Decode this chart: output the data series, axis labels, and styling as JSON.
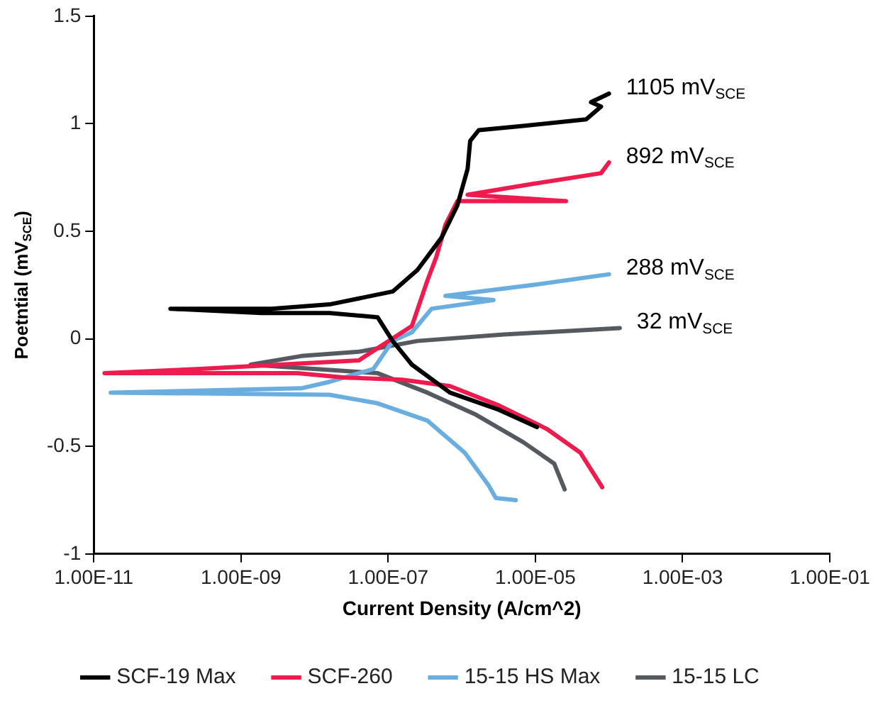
{
  "chart_data": {
    "type": "line",
    "xlabel": "Current Density (A/cm^2)",
    "ylabel": "Poetntial (mV$_{SCE}$)",
    "log": "x",
    "xlim": [
      1e-11,
      0.1
    ],
    "xticks": [
      {
        "value": 1e-11,
        "label": "1.00E-11"
      },
      {
        "value": 1e-09,
        "label": "1.00E-09"
      },
      {
        "value": 1e-07,
        "label": "1.00E-07"
      },
      {
        "value": 1e-05,
        "label": "1.00E-05"
      },
      {
        "value": 0.001,
        "label": "1.00E-03"
      },
      {
        "value": 0.1,
        "label": "1.00E-01"
      }
    ],
    "ylim": [
      -1,
      1.5
    ],
    "yticks": [
      -1,
      -0.5,
      0,
      0.5,
      1,
      1.5
    ],
    "grid": false,
    "legend": "bottom",
    "marker": "none",
    "line_style": "solid",
    "series": [
      {
        "name": "SCF-19 Max",
        "color": "#000000",
        "x": [
          1.05e-05,
          3.2e-06,
          6.9e-07,
          2.1e-07,
          1.15e-07,
          7.2e-08,
          1.6e-08,
          1.9e-09,
          1.1e-10,
          2.6e-09,
          1.6e-08,
          1.15e-07,
          2.5e-07,
          5.3e-07,
          8.7e-07,
          1.2e-06,
          1.3e-06,
          1.7e-06,
          6.8e-06,
          4.9e-05,
          7.8e-05,
          5.7e-05,
          0.0001
        ],
        "values": [
          -0.41,
          -0.33,
          -0.25,
          -0.12,
          -0.01,
          0.1,
          0.12,
          0.12,
          0.14,
          0.14,
          0.16,
          0.22,
          0.32,
          0.47,
          0.62,
          0.79,
          0.92,
          0.97,
          0.99,
          1.02,
          1.08,
          1.1,
          1.14
        ]
      },
      {
        "name": "SCF-260",
        "color": "#ee1c4e",
        "x": [
          8.1e-05,
          4.1e-05,
          1.45e-05,
          3.2e-06,
          6.9e-07,
          1.55e-07,
          2.6e-08,
          5.8e-09,
          1.4e-11,
          2.8e-10,
          4e-08,
          2.1e-07,
          3.4e-07,
          4.5e-07,
          6e-07,
          8.7e-07,
          2.6e-05,
          1.2e-06,
          9.1e-06,
          7.8e-05,
          0.0001
        ],
        "values": [
          -0.69,
          -0.53,
          -0.42,
          -0.31,
          -0.22,
          -0.19,
          -0.18,
          -0.16,
          -0.16,
          -0.14,
          -0.1,
          0.06,
          0.27,
          0.38,
          0.53,
          0.64,
          0.64,
          0.67,
          0.72,
          0.77,
          0.82
        ]
      },
      {
        "name": "15-15 HS Max",
        "color": "#6aaee0",
        "x": [
          5.4e-06,
          2.9e-06,
          2.3e-06,
          1.1e-06,
          3.4e-07,
          7.2e-08,
          1.6e-08,
          1.7e-11,
          6.6e-09,
          1.6e-08,
          6.3e-08,
          1.15e-07,
          2.1e-07,
          3.9e-07,
          2.7e-06,
          6e-07,
          9.1e-06,
          0.0001
        ],
        "values": [
          -0.75,
          -0.74,
          -0.68,
          -0.53,
          -0.38,
          -0.3,
          -0.26,
          -0.25,
          -0.23,
          -0.2,
          -0.14,
          -0.01,
          0.03,
          0.14,
          0.18,
          0.2,
          0.25,
          0.3
        ]
      },
      {
        "name": "15-15 LC",
        "color": "#555a60",
        "x": [
          2.5e-05,
          1.8e-05,
          6.8e-06,
          1.5e-06,
          3.4e-07,
          7.2e-08,
          1.35e-09,
          6.6e-09,
          4e-08,
          2.5e-07,
          3.7e-06,
          0.00014
        ],
        "values": [
          -0.7,
          -0.58,
          -0.48,
          -0.35,
          -0.25,
          -0.16,
          -0.12,
          -0.08,
          -0.06,
          -0.01,
          0.02,
          0.05
        ]
      }
    ],
    "annotations": [
      "1105 mV$_{SCE}$",
      "892 mV$_{SCE}$",
      "288 mV$_{SCE}$",
      "32 mV$_{SCE}$"
    ]
  }
}
